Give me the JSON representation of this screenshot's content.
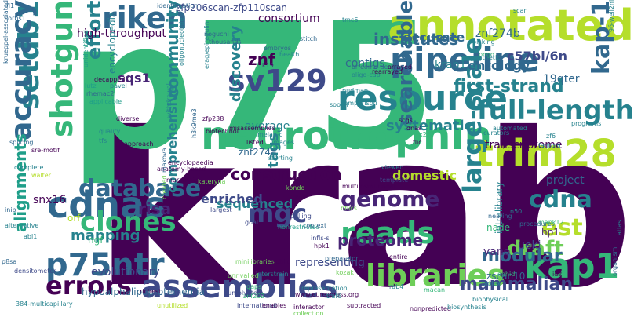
{
  "colors": {
    "background": "#ffffff",
    "palette": [
      "#440154",
      "#482576",
      "#3e4a89",
      "#31688e",
      "#26828e",
      "#1f9e89",
      "#35b779",
      "#6ece58",
      "#b5de2b",
      "#fde725"
    ]
  },
  "words": [
    {
      "text": "krab",
      "color": "#440154"
    },
    {
      "text": "p75",
      "color": "#35b779"
    },
    {
      "text": "neurotrophin",
      "color": "#35b779"
    },
    {
      "text": "annotated",
      "color": "#b5de2b"
    },
    {
      "text": "pipeline",
      "color": "#31688e"
    },
    {
      "text": "resource",
      "color": "#26828e"
    },
    {
      "text": "trim28",
      "color": "#b5de2b"
    },
    {
      "text": "full-length",
      "color": "#26828e"
    },
    {
      "text": "riken",
      "color": "#31688e"
    },
    {
      "text": "sv129",
      "color": "#3e4a89"
    },
    {
      "text": "setdb1",
      "color": "#26828e"
    },
    {
      "text": "shotgun",
      "color": "#35b779"
    },
    {
      "text": "accuracy",
      "color": "#31688e"
    },
    {
      "text": "cdnas",
      "color": "#31688e"
    },
    {
      "text": "p75ntr",
      "color": "#31688e"
    },
    {
      "text": "kap1",
      "color": "#35b779"
    },
    {
      "text": "kap-1",
      "color": "#31688e"
    },
    {
      "text": "libraries",
      "color": "#6ece58"
    },
    {
      "text": "assemblies",
      "color": "#3e4a89"
    },
    {
      "text": "reads",
      "color": "#35b779"
    },
    {
      "text": "clones",
      "color": "#35b779"
    },
    {
      "text": "database",
      "color": "#31688e"
    },
    {
      "text": "genome",
      "color": "#482576"
    },
    {
      "text": "mgc",
      "color": "#3e4a89"
    },
    {
      "text": "cdna",
      "color": "#26828e"
    },
    {
      "text": "est",
      "color": "#b5de2b"
    },
    {
      "text": "errors",
      "color": "#440154"
    },
    {
      "text": "proteome",
      "color": "#482576"
    },
    {
      "text": "large-scale",
      "color": "#26828e"
    },
    {
      "text": "searchable",
      "color": "#31688e"
    },
    {
      "text": "first-strand",
      "color": "#26828e"
    },
    {
      "text": "institutes",
      "color": "#31688e"
    },
    {
      "text": "community",
      "color": "#26828e"
    },
    {
      "text": "effort",
      "color": "#26828e"
    },
    {
      "text": "systematic",
      "color": "#26828e"
    },
    {
      "text": "construction",
      "color": "#440154"
    },
    {
      "text": "tags",
      "color": "#26828e"
    },
    {
      "text": "draft",
      "color": "#6ece58"
    },
    {
      "text": "modular",
      "color": "#31688e"
    },
    {
      "text": "mammalian",
      "color": "#3e4a89"
    },
    {
      "text": "comprehensive",
      "color": "#26828e"
    },
    {
      "text": "sequenced",
      "color": "#26828e"
    },
    {
      "text": "alignments",
      "color": "#1f9e89"
    },
    {
      "text": "evolutionary",
      "color": "#3e4a89"
    },
    {
      "text": "representing",
      "color": "#3e4a89"
    },
    {
      "text": "discovery",
      "color": "#26828e"
    },
    {
      "text": "ontology",
      "color": "#31688e"
    },
    {
      "text": "znf274b",
      "color": "#31688e"
    },
    {
      "text": "znf",
      "color": "#440154"
    },
    {
      "text": "average",
      "color": "#26828e"
    },
    {
      "text": "domestic",
      "color": "#b5de2b"
    },
    {
      "text": "enriched",
      "color": "#3e4a89"
    },
    {
      "text": "project",
      "color": "#31688e"
    },
    {
      "text": "mapping",
      "color": "#26828e"
    },
    {
      "text": "risa",
      "color": "#482576"
    },
    {
      "text": "sqs1",
      "color": "#482576"
    },
    {
      "text": "contigs",
      "color": "#31688e"
    },
    {
      "text": "accurate",
      "color": "#31688e"
    },
    {
      "text": "krab1:3",
      "color": "#26828e"
    },
    {
      "text": "high-throughput",
      "color": "#440154"
    },
    {
      "text": "consortium",
      "color": "#440154"
    },
    {
      "text": "encyclopedia",
      "color": "#26828e"
    },
    {
      "text": "c57bl/6n",
      "color": "#3e4a89"
    },
    {
      "text": "19qter",
      "color": "#31688e"
    },
    {
      "text": "snx16",
      "color": "#440154"
    },
    {
      "text": "transcriptome",
      "color": "#440154"
    },
    {
      "text": "nade",
      "color": "#35b779"
    },
    {
      "text": "yano",
      "color": "#482576"
    },
    {
      "text": "hp1",
      "color": "#482576"
    },
    {
      "text": "ueki",
      "color": "#3e4a89"
    },
    {
      "text": "orf",
      "color": "#b5de2b"
    },
    {
      "text": "znf274a",
      "color": "#31688e"
    },
    {
      "text": "intralibrary",
      "color": "#26828e"
    },
    {
      "text": "zscan10",
      "color": "#31688e"
    },
    {
      "text": "ngf",
      "color": "#35b779"
    },
    {
      "text": "hypoalphalipoproteinemia",
      "color": "#31688e"
    },
    {
      "text": "zfp206scan-zfp110scan",
      "color": "#3e4a89"
    },
    {
      "text": "identification",
      "color": "#31688e"
    },
    {
      "text": "krueppel-associated",
      "color": "#31688e"
    },
    {
      "text": "sorbs1",
      "color": "#31688e"
    },
    {
      "text": "fl1",
      "color": "#31688e"
    },
    {
      "text": "noguchi",
      "color": "#31688e"
    },
    {
      "text": "thousands",
      "color": "#31688e"
    },
    {
      "text": "stitch",
      "color": "#31688e"
    },
    {
      "text": "embryos",
      "color": "#31688e"
    },
    {
      "text": "health",
      "color": "#26828e"
    },
    {
      "text": "k19",
      "color": "#482576"
    },
    {
      "text": "decapped",
      "color": "#440154"
    },
    {
      "text": "lutz",
      "color": "#1f9e89"
    },
    {
      "text": "pavel",
      "color": "#26828e"
    },
    {
      "text": "rhemac2",
      "color": "#31688e"
    },
    {
      "text": "applicable",
      "color": "#1f9e89"
    },
    {
      "text": "unidentified",
      "color": "#1f9e89"
    },
    {
      "text": "diverse",
      "color": "#440154"
    },
    {
      "text": "tfs",
      "color": "#26828e"
    },
    {
      "text": "quality",
      "color": "#26828e"
    },
    {
      "text": "approach",
      "color": "#440154"
    },
    {
      "text": "melan-c",
      "color": "#26828e"
    },
    {
      "text": "images",
      "color": "#26828e"
    },
    {
      "text": "listed",
      "color": "#440154"
    },
    {
      "text": "biotechnol",
      "color": "#440154"
    },
    {
      "text": "zfp238",
      "color": "#440154"
    },
    {
      "text": "misassemblies",
      "color": "#440154"
    },
    {
      "text": "encyclopaedia",
      "color": "#440154"
    },
    {
      "text": "anatomy-based",
      "color": "#440154"
    },
    {
      "text": "muramatsu",
      "color": "#440154"
    },
    {
      "text": "kateryna",
      "color": "#6ece58"
    },
    {
      "text": "kondo",
      "color": "#6ece58"
    },
    {
      "text": "kox",
      "color": "#440154"
    },
    {
      "text": "starting",
      "color": "#26828e"
    },
    {
      "text": "largest",
      "color": "#3e4a89"
    },
    {
      "text": "goal",
      "color": "#3e4a89"
    },
    {
      "text": "nonrestricted",
      "color": "#1f9e89"
    },
    {
      "text": "polling",
      "color": "#3e4a89"
    },
    {
      "text": "context",
      "color": "#31688e"
    },
    {
      "text": "bflics",
      "color": "#6ece58"
    },
    {
      "text": "infls-si",
      "color": "#3e4a89"
    },
    {
      "text": "hpk1",
      "color": "#440154"
    },
    {
      "text": "multiinstitutional",
      "color": "#440154"
    },
    {
      "text": "template",
      "color": "#3e4a89"
    },
    {
      "text": "nearing",
      "color": "#31688e"
    },
    {
      "text": "procedures",
      "color": "#31688e"
    },
    {
      "text": "mapk12",
      "color": "#35b779"
    },
    {
      "text": "n50",
      "color": "#26828e"
    },
    {
      "text": "viewed",
      "color": "#26828e"
    },
    {
      "text": "fantom",
      "color": "#26828e"
    },
    {
      "text": "zf6",
      "color": "#26828e"
    },
    {
      "text": "programs",
      "color": "#26828e"
    },
    {
      "text": "curators",
      "color": "#26828e"
    },
    {
      "text": "automated",
      "color": "#26828e"
    },
    {
      "text": "x28",
      "color": "#35b779"
    },
    {
      "text": "flic",
      "color": "#440154"
    },
    {
      "text": "dnas",
      "color": "#440154"
    },
    {
      "text": "scgs",
      "color": "#440154"
    },
    {
      "text": "pudmap",
      "color": "#26828e"
    },
    {
      "text": "soojin",
      "color": "#26828e"
    },
    {
      "text": "comparison",
      "color": "#26828e"
    },
    {
      "text": "oligo-cap",
      "color": "#26828e"
    },
    {
      "text": "orfeome-derived",
      "color": "#31688e"
    },
    {
      "text": "rearrayed",
      "color": "#440154"
    },
    {
      "text": "arrayed",
      "color": "#440154"
    },
    {
      "text": "pogo",
      "color": "#35b779"
    },
    {
      "text": "sympathetic",
      "color": "#26828e"
    },
    {
      "text": "picking",
      "color": "#26828e"
    },
    {
      "text": "scan",
      "color": "#26828e"
    },
    {
      "text": "9б-well2nl",
      "color": "#26828e"
    },
    {
      "text": "tmc6",
      "color": "#26828e"
    },
    {
      "text": "erag/epiregulin",
      "color": "#26828e"
    },
    {
      "text": "oligonucleotide",
      "color": "#26828e"
    },
    {
      "text": "withdrawal",
      "color": "#26828e"
    },
    {
      "text": "h3k9me3",
      "color": "#31688e"
    },
    {
      "text": "makova",
      "color": "#31688e"
    },
    {
      "text": "inib",
      "color": "#31688e"
    },
    {
      "text": "alternative",
      "color": "#26828e"
    },
    {
      "text": "abl1",
      "color": "#26828e"
    },
    {
      "text": "complete",
      "color": "#26828e"
    },
    {
      "text": "walter",
      "color": "#b5de2b"
    },
    {
      "text": "splicing",
      "color": "#31688e"
    },
    {
      "text": "sre-motif",
      "color": "#440154"
    },
    {
      "text": "p8sa",
      "color": "#31688e"
    },
    {
      "text": "densitometer",
      "color": "#3e4a89"
    },
    {
      "text": "384-multicapillary",
      "color": "#26828e"
    },
    {
      "text": "richest",
      "color": "#440154"
    },
    {
      "text": "unutilized",
      "color": "#b5de2b"
    },
    {
      "text": "international",
      "color": "#3e4a89"
    },
    {
      "text": "enables",
      "color": "#440154"
    },
    {
      "text": "interactor",
      "color": "#440154"
    },
    {
      "text": "subtracted",
      "color": "#440154"
    },
    {
      "text": "nonpredicted",
      "color": "#440154"
    },
    {
      "text": "biosynthesis",
      "color": "#26828e"
    },
    {
      "text": "biophysical",
      "color": "#26828e"
    },
    {
      "text": "organism",
      "color": "#31688e"
    },
    {
      "text": "ophid",
      "color": "#35b779"
    },
    {
      "text": "macan",
      "color": "#35b779"
    },
    {
      "text": "www.eurexpress.org",
      "color": "#440154"
    },
    {
      "text": "traf6",
      "color": "#26828e"
    },
    {
      "text": "representation",
      "color": "#26828e"
    },
    {
      "text": "biolex",
      "color": "#26828e"
    },
    {
      "text": "id2",
      "color": "#440154"
    },
    {
      "text": "atlas",
      "color": "#26828e"
    },
    {
      "text": "collection",
      "color": "#6ece58"
    },
    {
      "text": "znf202",
      "color": "#35b779"
    },
    {
      "text": "sumolyated",
      "color": "#3e4a89"
    },
    {
      "text": "gaps",
      "color": "#35b779"
    },
    {
      "text": "unrivalled",
      "color": "#6ece58"
    },
    {
      "text": "interstrain",
      "color": "#26828e"
    },
    {
      "text": "minilibraries",
      "color": "#6ece58"
    },
    {
      "text": "public",
      "color": "#440154"
    },
    {
      "text": "preparator",
      "color": "#31688e"
    },
    {
      "text": "entire",
      "color": "#440154"
    },
    {
      "text": "rab4",
      "color": "#26828e"
    },
    {
      "text": "kozak",
      "color": "#6ece58"
    },
    {
      "text": "created",
      "color": "#6ece58"
    },
    {
      "text": "clustered",
      "color": "#b5de2b"
    },
    {
      "text": "ssl",
      "color": "#6ece58"
    }
  ]
}
